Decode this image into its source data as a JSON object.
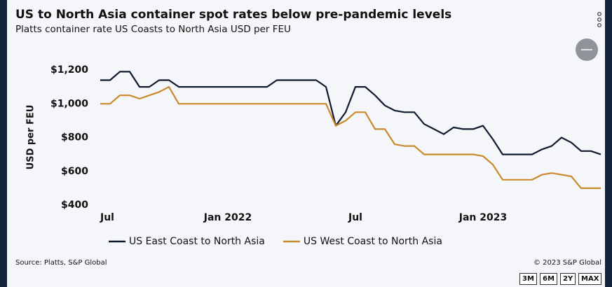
{
  "chart_data": {
    "type": "line",
    "title": "US to North Asia container spot rates below pre-pandemic levels",
    "subtitle": "Platts container rate US Coasts to North Asia USD per FEU",
    "y_label": "USD per FEU",
    "categories": [
      "Jul",
      null,
      null,
      null,
      null,
      null,
      null,
      null,
      null,
      null,
      null,
      null,
      null,
      "Jan 2022",
      null,
      null,
      null,
      null,
      null,
      null,
      null,
      null,
      null,
      null,
      null,
      null,
      "Jul",
      null,
      null,
      null,
      null,
      null,
      null,
      null,
      null,
      null,
      null,
      null,
      null,
      "Jan 2023",
      null,
      null,
      null,
      null,
      null,
      null,
      null,
      null,
      null,
      null,
      null,
      null
    ],
    "series": [
      {
        "name": "US East Coast to North Asia",
        "color": "#0f1a2e",
        "values": [
          1140,
          1140,
          1190,
          1190,
          1100,
          1100,
          1140,
          1140,
          1100,
          1100,
          1100,
          1100,
          1100,
          1100,
          1100,
          1100,
          1100,
          1100,
          1140,
          1140,
          1140,
          1140,
          1140,
          1100,
          870,
          950,
          1100,
          1100,
          1050,
          990,
          960,
          950,
          950,
          880,
          850,
          820,
          860,
          850,
          850,
          870,
          790,
          700,
          700,
          700,
          700,
          730,
          750,
          800,
          770,
          720,
          720,
          700
        ]
      },
      {
        "name": "US West Coast to North Asia",
        "color": "#c98a2e",
        "values": [
          1000,
          1000,
          1050,
          1050,
          1030,
          1050,
          1070,
          1100,
          1000,
          1000,
          1000,
          1000,
          1000,
          1000,
          1000,
          1000,
          1000,
          1000,
          1000,
          1000,
          1000,
          1000,
          1000,
          1000,
          870,
          900,
          950,
          950,
          850,
          850,
          760,
          750,
          750,
          700,
          700,
          700,
          700,
          700,
          700,
          690,
          640,
          550,
          550,
          550,
          550,
          580,
          590,
          580,
          570,
          500,
          500,
          500
        ]
      }
    ],
    "ylim": [
      400,
      1200
    ],
    "yticks": [
      {
        "value": 400,
        "label": "$400"
      },
      {
        "value": 600,
        "label": "$600"
      },
      {
        "value": 800,
        "label": "$800"
      },
      {
        "value": 1000,
        "label": "$1,000"
      },
      {
        "value": 1200,
        "label": "$1,200"
      }
    ],
    "grid": false,
    "legend": "bottom",
    "source": "Source: Platts, S&P Global",
    "copyright": "© 2023 S&P Global",
    "range_buttons": [
      "3M",
      "6M",
      "2Y",
      "MAX"
    ]
  }
}
